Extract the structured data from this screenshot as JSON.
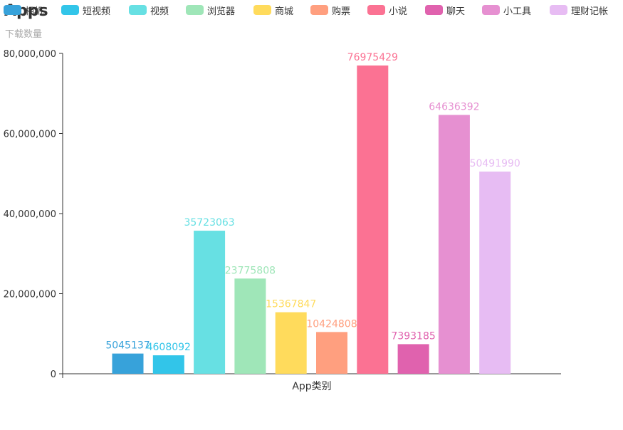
{
  "chart_data": {
    "type": "bar",
    "title": "Apps",
    "ylabel": "下载数量",
    "xlabel": "App类别",
    "ylim": [
      0,
      80000000
    ],
    "yticks": [
      "0",
      "20,000,000",
      "40,000,000",
      "60,000,000",
      "80,000,000"
    ],
    "legend_position": "top",
    "series": [
      {
        "name": "相机",
        "value": 5045137,
        "color": "#37a2da"
      },
      {
        "name": "短视频",
        "value": 4608092,
        "color": "#32c5e9"
      },
      {
        "name": "视频",
        "value": 35723063,
        "color": "#67e0e3"
      },
      {
        "name": "浏览器",
        "value": 23775808,
        "color": "#9fe6b8"
      },
      {
        "name": "商城",
        "value": 15367847,
        "color": "#ffdb5c"
      },
      {
        "name": "购票",
        "value": 10424808,
        "color": "#ff9f7f"
      },
      {
        "name": "小说",
        "value": 76975429,
        "color": "#fb7293"
      },
      {
        "name": "聊天",
        "value": 7393185,
        "color": "#e062ae"
      },
      {
        "name": "小工具",
        "value": 64636392,
        "color": "#e690d1"
      },
      {
        "name": "理财记帐",
        "value": 50491990,
        "color": "#e7bcf3"
      }
    ]
  }
}
